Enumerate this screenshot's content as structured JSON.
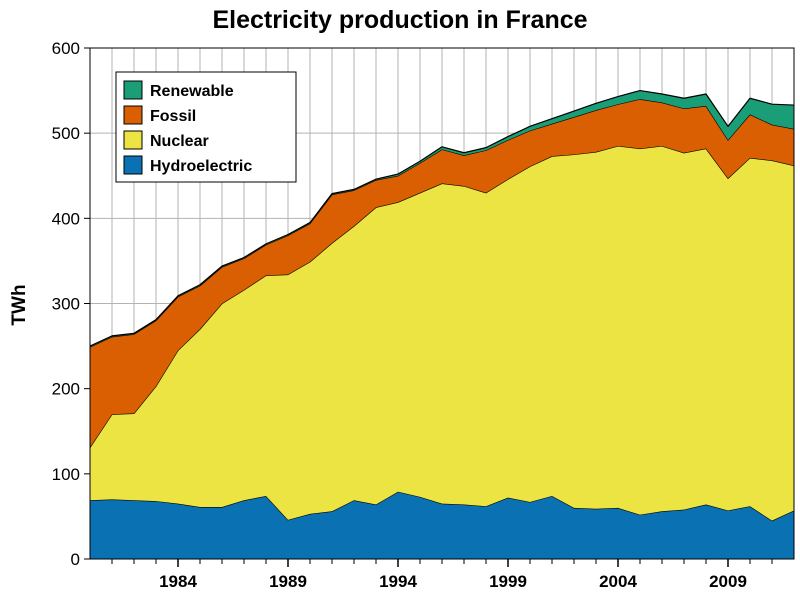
{
  "colors": {
    "renewable": "#1a9e77",
    "fossil": "#d95f02",
    "nuclear": "#ece443",
    "hydroelectric": "#0a71b3",
    "grid": "#b3b3b3"
  },
  "chart_data": {
    "type": "area",
    "stacked": true,
    "title": "Electricity production in France",
    "ylabel": "TWh",
    "xlabel": "",
    "ylim": [
      0,
      600
    ],
    "yticks": [
      0,
      100,
      200,
      300,
      400,
      500,
      600
    ],
    "xlim": [
      1980,
      2012
    ],
    "xticks": [
      1984,
      1989,
      1994,
      1999,
      2004,
      2009
    ],
    "grid": "vertical lines every year, horizontal lines every 100 TWh",
    "legend_position": "top-left",
    "x": [
      1980,
      1981,
      1982,
      1983,
      1984,
      1985,
      1986,
      1987,
      1988,
      1989,
      1990,
      1991,
      1992,
      1993,
      1994,
      1995,
      1996,
      1997,
      1998,
      1999,
      2000,
      2001,
      2002,
      2003,
      2004,
      2005,
      2006,
      2007,
      2008,
      2009,
      2010,
      2011,
      2012
    ],
    "series": [
      {
        "name": "Hydroelectric",
        "color_key": "hydroelectric",
        "values": [
          69,
          70,
          69,
          68,
          65,
          61,
          61,
          69,
          74,
          46,
          53,
          56,
          69,
          64,
          79,
          73,
          65,
          64,
          62,
          72,
          67,
          74,
          60,
          59,
          60,
          52,
          56,
          58,
          64,
          57,
          62,
          45,
          57
        ]
      },
      {
        "name": "Nuclear",
        "color_key": "nuclear",
        "values": [
          62,
          100,
          102,
          135,
          180,
          209,
          239,
          247,
          259,
          288,
          296,
          315,
          322,
          349,
          340,
          357,
          376,
          374,
          368,
          374,
          394,
          399,
          415,
          419,
          425,
          430,
          429,
          419,
          418,
          390,
          409,
          423,
          405
        ]
      },
      {
        "name": "Fossil",
        "color_key": "fossil",
        "values": [
          118,
          91,
          93,
          77,
          63,
          51,
          43,
          37,
          36,
          46,
          45,
          57,
          42,
          32,
          31,
          35,
          40,
          36,
          50,
          46,
          42,
          38,
          44,
          49,
          49,
          58,
          51,
          52,
          50,
          45,
          51,
          42,
          43
        ]
      },
      {
        "name": "Renewable",
        "color_key": "renewable",
        "values": [
          1,
          1,
          1,
          1,
          1,
          1,
          1,
          1,
          1,
          1,
          1,
          1,
          1,
          1,
          2,
          2,
          3,
          3,
          3,
          4,
          5,
          6,
          7,
          8,
          9,
          10,
          10,
          12,
          14,
          16,
          19,
          24,
          28
        ]
      }
    ],
    "legend": [
      "Renewable",
      "Fossil",
      "Nuclear",
      "Hydroelectric"
    ]
  }
}
